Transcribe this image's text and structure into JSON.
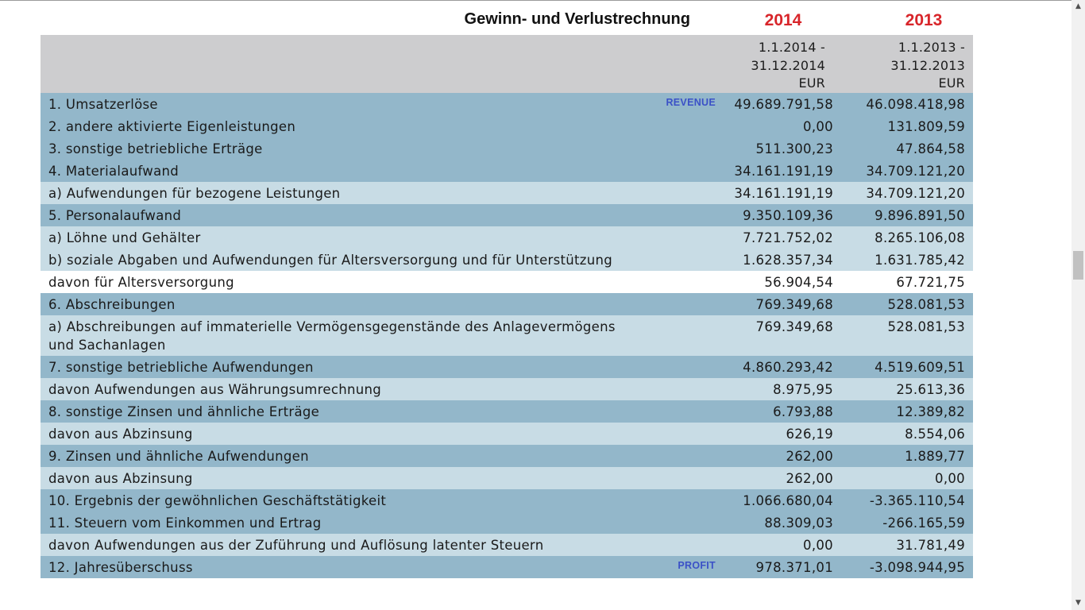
{
  "statement": {
    "title": "Gewinn- und Verlustrechnung",
    "year_a": "2014",
    "year_b": "2013",
    "period_a": {
      "line1": "1.1.2014 -",
      "line2": "31.12.2014",
      "currency": "EUR"
    },
    "period_b": {
      "line1": "1.1.2013 -",
      "line2": "31.12.2013",
      "currency": "EUR"
    }
  },
  "rows": [
    {
      "label": "1. Umsatzerlöse",
      "tag": "REVENUE",
      "v2014": "49.689.791,58",
      "v2013": "46.098.418,98",
      "style": "dark"
    },
    {
      "label": "2. andere aktivierte Eigenleistungen",
      "tag": "",
      "v2014": "0,00",
      "v2013": "131.809,59",
      "style": "dark"
    },
    {
      "label": "3. sonstige betriebliche Erträge",
      "tag": "",
      "v2014": "511.300,23",
      "v2013": "47.864,58",
      "style": "dark"
    },
    {
      "label": "4. Materialaufwand",
      "tag": "",
      "v2014": "34.161.191,19",
      "v2013": "34.709.121,20",
      "style": "dark"
    },
    {
      "label": "a) Aufwendungen für bezogene Leistungen",
      "tag": "",
      "v2014": "34.161.191,19",
      "v2013": "34.709.121,20",
      "style": "light"
    },
    {
      "label": "5. Personalaufwand",
      "tag": "",
      "v2014": "9.350.109,36",
      "v2013": "9.896.891,50",
      "style": "dark"
    },
    {
      "label": "a) Löhne und Gehälter",
      "tag": "",
      "v2014": "7.721.752,02",
      "v2013": "8.265.106,08",
      "style": "light"
    },
    {
      "label": "b) soziale Abgaben und Aufwendungen für Altersversorgung und für Unterstützung",
      "tag": "",
      "v2014": "1.628.357,34",
      "v2013": "1.631.785,42",
      "style": "light"
    },
    {
      "label": "davon für Altersversorgung",
      "tag": "",
      "v2014": "56.904,54",
      "v2013": "67.721,75",
      "style": "white"
    },
    {
      "label": "6. Abschreibungen",
      "tag": "",
      "v2014": "769.349,68",
      "v2013": "528.081,53",
      "style": "dark"
    },
    {
      "label": "a) Abschreibungen auf immaterielle Vermögensgegenstände des Anlagevermögens und Sachanlagen",
      "tag": "",
      "v2014": "769.349,68",
      "v2013": "528.081,53",
      "style": "light",
      "tall": true
    },
    {
      "label": "7. sonstige betriebliche Aufwendungen",
      "tag": "",
      "v2014": "4.860.293,42",
      "v2013": "4.519.609,51",
      "style": "dark"
    },
    {
      "label": "davon Aufwendungen aus Währungsumrechnung",
      "tag": "",
      "v2014": "8.975,95",
      "v2013": "25.613,36",
      "style": "light"
    },
    {
      "label": "8. sonstige Zinsen und ähnliche Erträge",
      "tag": "",
      "v2014": "6.793,88",
      "v2013": "12.389,82",
      "style": "dark"
    },
    {
      "label": "davon aus Abzinsung",
      "tag": "",
      "v2014": "626,19",
      "v2013": "8.554,06",
      "style": "light"
    },
    {
      "label": "9. Zinsen und ähnliche Aufwendungen",
      "tag": "",
      "v2014": "262,00",
      "v2013": "1.889,77",
      "style": "dark"
    },
    {
      "label": "davon aus Abzinsung",
      "tag": "",
      "v2014": "262,00",
      "v2013": "0,00",
      "style": "light"
    },
    {
      "label": "10. Ergebnis der gewöhnlichen Geschäftstätigkeit",
      "tag": "",
      "v2014": "1.066.680,04",
      "v2013": "-3.365.110,54",
      "style": "dark"
    },
    {
      "label": "11. Steuern vom Einkommen und Ertrag",
      "tag": "",
      "v2014": "88.309,03",
      "v2013": "-266.165,59",
      "style": "dark"
    },
    {
      "label": "davon Aufwendungen aus der Zuführung und Auflösung latenter Steuern",
      "tag": "",
      "v2014": "0,00",
      "v2013": "31.781,49",
      "style": "light"
    },
    {
      "label": "12. Jahresüberschuss",
      "tag": "PROFIT",
      "v2014": "978.371,01",
      "v2013": "-3.098.944,95",
      "style": "dark"
    }
  ],
  "colors": {
    "year_red": "#d8252a",
    "header_gray": "#cdcdcf",
    "row_dark": "#93b7ca",
    "row_light": "#c8dce5",
    "tag_blue": "#3b51c7"
  },
  "scrollbar": {
    "up_icon": "triangle-up",
    "down_icon": "triangle-down"
  }
}
